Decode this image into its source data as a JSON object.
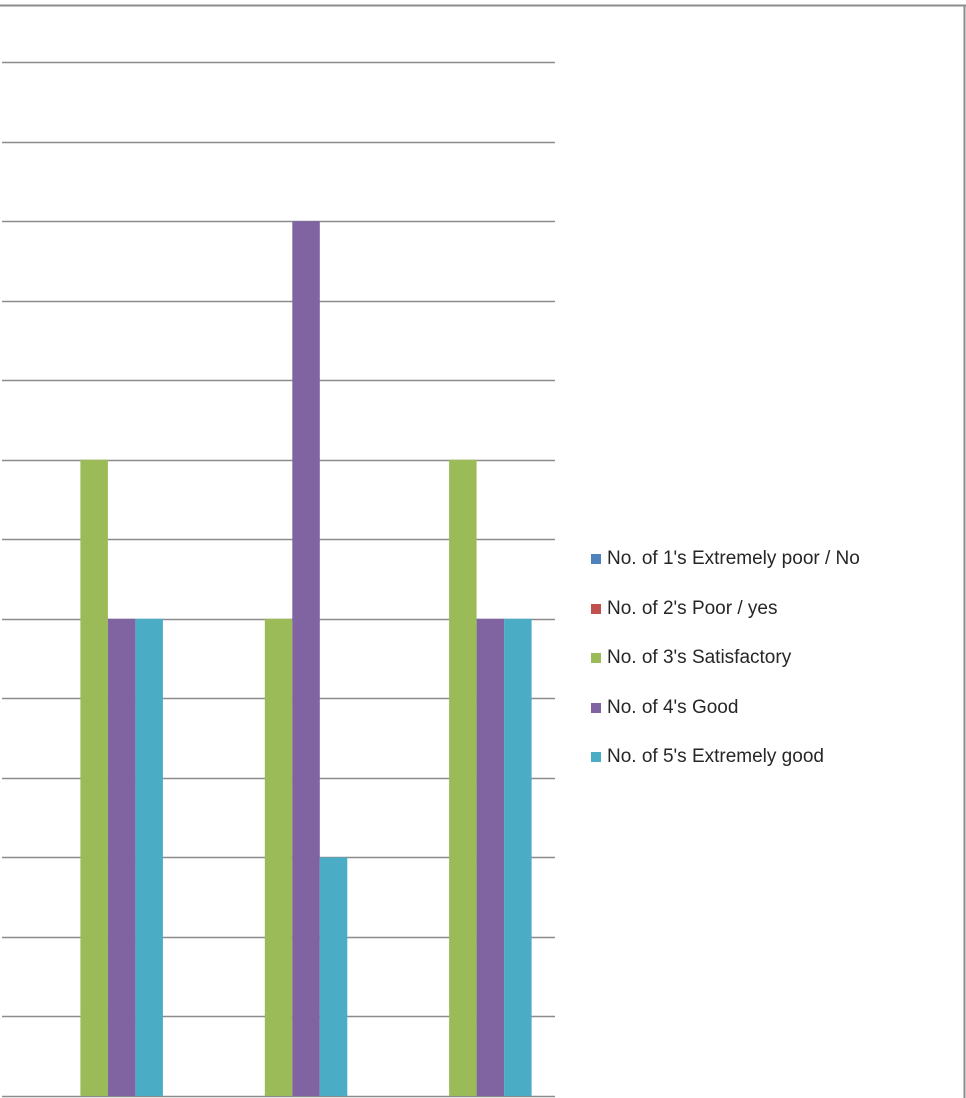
{
  "chart_data": {
    "type": "bar",
    "categories": [
      "",
      "",
      ""
    ],
    "series": [
      {
        "name": "No. of 1's Extremely poor / No",
        "color": "#4f81bd",
        "values": [
          0,
          0,
          0
        ]
      },
      {
        "name": "No. of 2's Poor / yes",
        "color": "#c0504d",
        "values": [
          0,
          0,
          0
        ]
      },
      {
        "name": "No. of 3's Satisfactory",
        "color": "#9bbb59",
        "values": [
          4,
          3,
          4
        ]
      },
      {
        "name": "No. of 4's Good",
        "color": "#8064a2",
        "values": [
          3,
          5.5,
          3
        ]
      },
      {
        "name": "No. of 5's Extremely good",
        "color": "#4bacc6",
        "values": [
          3,
          1.5,
          3
        ]
      }
    ],
    "ylim": [
      0,
      6.5
    ],
    "grid": true,
    "legend_position": "right",
    "colors": {
      "gridline": "#8c8c8c",
      "legend_text": "#262626"
    }
  }
}
